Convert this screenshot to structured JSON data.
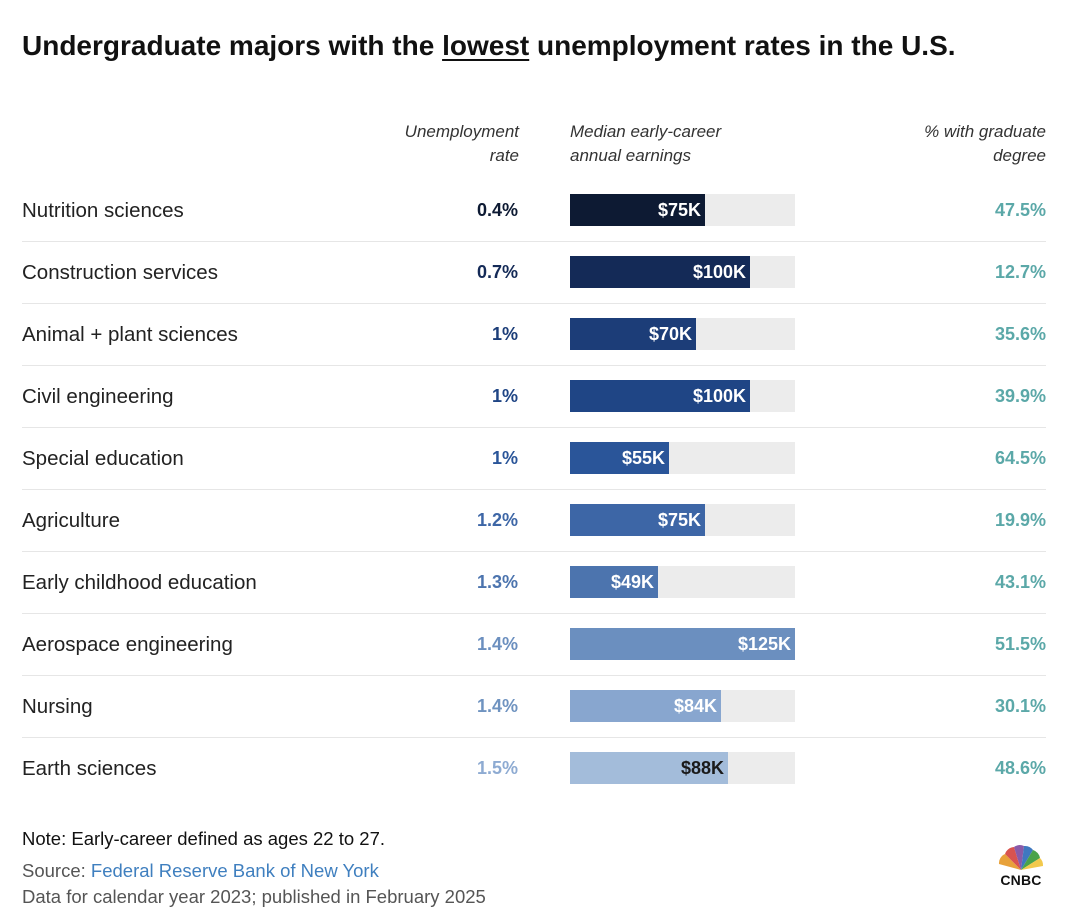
{
  "header": {
    "title_before": "Undergraduate majors with the ",
    "title_emph": "lowest",
    "title_after": " unemployment rates in the U.S."
  },
  "columns": {
    "rate": [
      "Unemployment",
      "rate"
    ],
    "earnings": [
      "Median early-career",
      "annual earnings"
    ],
    "grad": [
      "% with graduate",
      "degree"
    ]
  },
  "chart_data": {
    "type": "table",
    "title": "Undergraduate majors with the lowest unemployment rates in the U.S.",
    "earnings_axis_max": 125000,
    "rows": [
      {
        "major": "Nutrition sciences",
        "rate_label": "0.4%",
        "earnings": 75000,
        "earnings_label": "$75K",
        "grad_label": "47.5%",
        "color": "#0d1a33",
        "rate_color": "#0d1a33",
        "label_color": "#ffffff"
      },
      {
        "major": "Construction services",
        "rate_label": "0.7%",
        "earnings": 100000,
        "earnings_label": "$100K",
        "grad_label": "12.7%",
        "color": "#142a57",
        "rate_color": "#142a57",
        "label_color": "#ffffff"
      },
      {
        "major": "Animal + plant sciences",
        "rate_label": "1%",
        "earnings": 70000,
        "earnings_label": "$70K",
        "grad_label": "35.6%",
        "color": "#1c3d78",
        "rate_color": "#1c3d78",
        "label_color": "#ffffff"
      },
      {
        "major": "Civil engineering",
        "rate_label": "1%",
        "earnings": 100000,
        "earnings_label": "$100K",
        "grad_label": "39.9%",
        "color": "#1f4585",
        "rate_color": "#1f4585",
        "label_color": "#ffffff"
      },
      {
        "major": "Special education",
        "rate_label": "1%",
        "earnings": 55000,
        "earnings_label": "$55K",
        "grad_label": "64.5%",
        "color": "#2a5599",
        "rate_color": "#2a5599",
        "label_color": "#ffffff"
      },
      {
        "major": "Agriculture",
        "rate_label": "1.2%",
        "earnings": 75000,
        "earnings_label": "$75K",
        "grad_label": "19.9%",
        "color": "#3d66a6",
        "rate_color": "#3d66a6",
        "label_color": "#ffffff"
      },
      {
        "major": "Early childhood education",
        "rate_label": "1.3%",
        "earnings": 49000,
        "earnings_label": "$49K",
        "grad_label": "43.1%",
        "color": "#4c74ae",
        "rate_color": "#4c74ae",
        "label_color": "#ffffff"
      },
      {
        "major": "Aerospace engineering",
        "rate_label": "1.4%",
        "earnings": 125000,
        "earnings_label": "$125K",
        "grad_label": "51.5%",
        "color": "#6b8fbf",
        "rate_color": "#6b8fbf",
        "label_color": "#ffffff"
      },
      {
        "major": "Nursing",
        "rate_label": "1.4%",
        "earnings": 84000,
        "earnings_label": "$84K",
        "grad_label": "30.1%",
        "color": "#88a6cf",
        "rate_color": "#6f93c0",
        "label_color": "#ffffff"
      },
      {
        "major": "Earth sciences",
        "rate_label": "1.5%",
        "earnings": 88000,
        "earnings_label": "$88K",
        "grad_label": "48.6%",
        "color": "#a3bcda",
        "rate_color": "#8eabd2",
        "label_color": "#1a1a1a"
      }
    ]
  },
  "footer": {
    "note": "Note: Early-career defined as ages 22 to 27.",
    "source_prefix": "Source: ",
    "source_link": "Federal Reserve Bank of New York",
    "data_year": "Data for calendar year 2023; published in February 2025"
  },
  "logo": {
    "text": "CNBC"
  }
}
